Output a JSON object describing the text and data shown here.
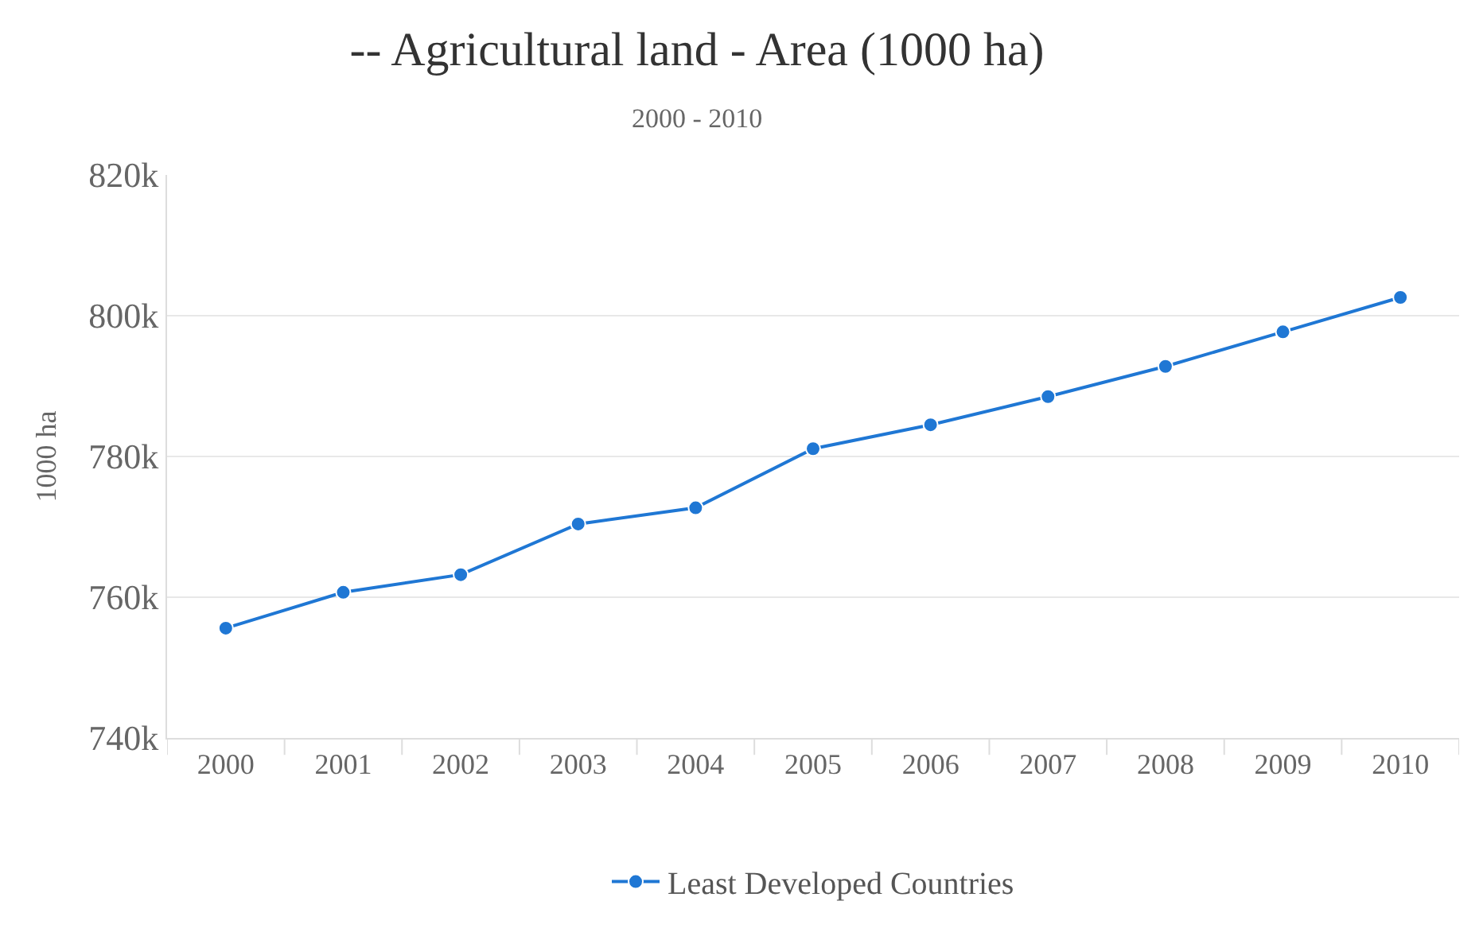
{
  "chart_data": {
    "type": "line",
    "title": "-- Agricultural land - Area (1000 ha)",
    "subtitle": "2000 - 2010",
    "ylabel": "1000 ha",
    "categories": [
      "2000",
      "2001",
      "2002",
      "2003",
      "2004",
      "2005",
      "2006",
      "2007",
      "2008",
      "2009",
      "2010"
    ],
    "series": [
      {
        "name": "Least Developed Countries",
        "color": "#1f77d4",
        "values": [
          755600,
          760700,
          763200,
          770400,
          772700,
          781100,
          784500,
          788500,
          792800,
          797700,
          802600
        ]
      }
    ],
    "ylim": [
      740000,
      820000
    ],
    "yticks": [
      {
        "value": 740000,
        "label": "740k"
      },
      {
        "value": 760000,
        "label": "760k"
      },
      {
        "value": 780000,
        "label": "780k"
      },
      {
        "value": 800000,
        "label": "800k"
      },
      {
        "value": 820000,
        "label": "820k"
      }
    ],
    "grid": "y",
    "legend": "bottom",
    "marker": "circle",
    "line_style": "solid"
  }
}
